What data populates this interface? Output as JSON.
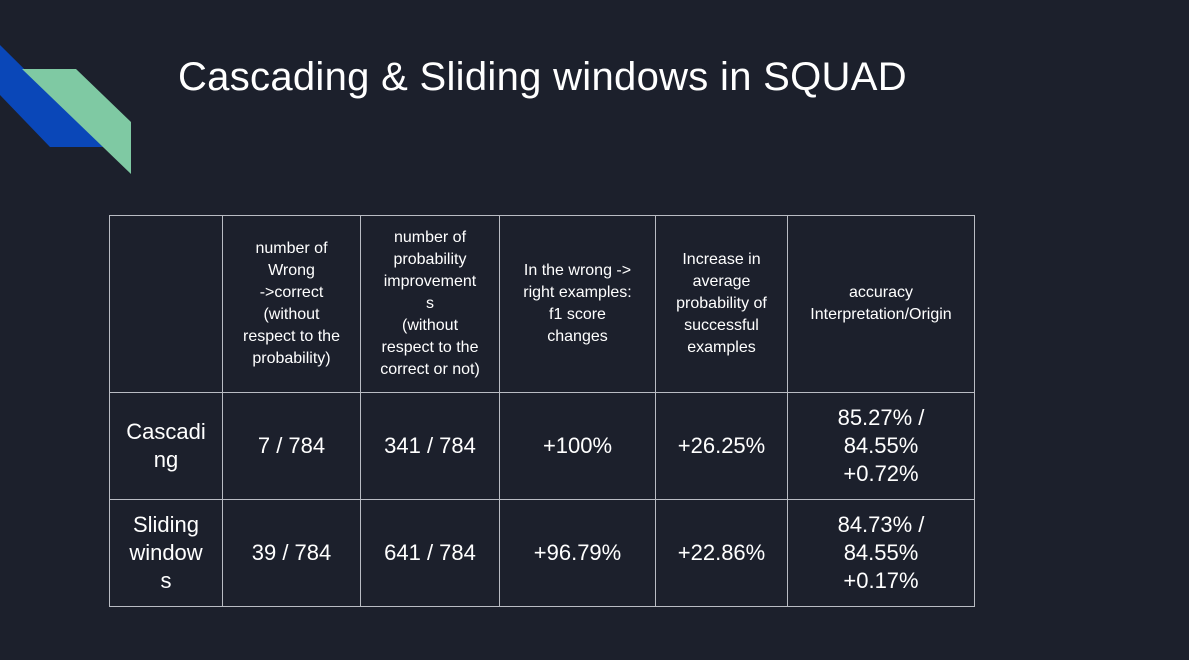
{
  "slide": {
    "title": "Cascading & Sliding windows in SQUAD"
  },
  "colors": {
    "background": "#1c202c",
    "accent_blue": "#0a47b8",
    "accent_green": "#7fc9a3",
    "grid": "#b9bcc3"
  },
  "table": {
    "headers": [
      "",
      "number of\nWrong\n->correct\n(without\nrespect to the\nprobability)",
      "number of\nprobability\nimprovement\ns\n(without\nrespect to the\ncorrect or not)",
      "In the wrong ->\nright examples:\nf1 score\nchanges",
      "Increase in\naverage\nprobability of\nsuccessful\nexamples",
      "accuracy\nInterpretation/Origin"
    ],
    "rows": [
      {
        "label": "Cascadi\nng",
        "wrong_to_correct": "7 / 784",
        "prob_improvements": "341 / 784",
        "f1_change": "+100%",
        "avg_prob_increase": "+26.25%",
        "accuracy": "85.27% /\n84.55%\n+0.72%"
      },
      {
        "label": "Sliding\nwindow\ns",
        "wrong_to_correct": "39 / 784",
        "prob_improvements": "641 / 784",
        "f1_change": "+96.79%",
        "avg_prob_increase": "+22.86%",
        "accuracy": "84.73% /\n84.55%\n+0.17%"
      }
    ]
  }
}
